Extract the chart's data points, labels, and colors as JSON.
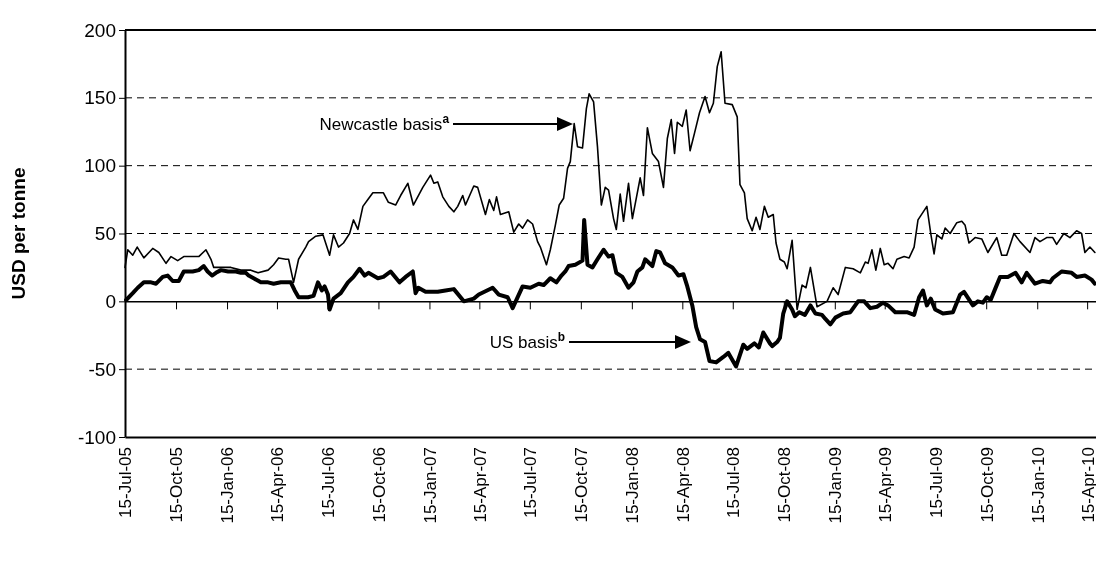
{
  "chart_data": {
    "type": "line",
    "ylabel": "USD per tonne",
    "xlim": [
      "2005-07-15",
      "2010-05-01"
    ],
    "xticks": [
      {
        "value": "2005-07-15",
        "label": "15-Jul-05"
      },
      {
        "value": "2005-10-15",
        "label": "15-Oct-05"
      },
      {
        "value": "2006-01-15",
        "label": "15-Jan-06"
      },
      {
        "value": "2006-04-15",
        "label": "15-Apr-06"
      },
      {
        "value": "2006-07-15",
        "label": "15-Jul-06"
      },
      {
        "value": "2006-10-15",
        "label": "15-Oct-06"
      },
      {
        "value": "2007-01-15",
        "label": "15-Jan-07"
      },
      {
        "value": "2007-04-15",
        "label": "15-Apr-07"
      },
      {
        "value": "2007-07-15",
        "label": "15-Jul-07"
      },
      {
        "value": "2007-10-15",
        "label": "15-Oct-07"
      },
      {
        "value": "2008-01-15",
        "label": "15-Jan-08"
      },
      {
        "value": "2008-04-15",
        "label": "15-Apr-08"
      },
      {
        "value": "2008-07-15",
        "label": "15-Jul-08"
      },
      {
        "value": "2008-10-15",
        "label": "15-Oct-08"
      },
      {
        "value": "2009-01-15",
        "label": "15-Jan-09"
      },
      {
        "value": "2009-04-15",
        "label": "15-Apr-09"
      },
      {
        "value": "2009-07-15",
        "label": "15-Jul-09"
      },
      {
        "value": "2009-10-15",
        "label": "15-Oct-09"
      },
      {
        "value": "2010-01-15",
        "label": "15-Jan-10"
      },
      {
        "value": "2010-04-15",
        "label": "15-Apr-10"
      }
    ],
    "ylim": [
      -100,
      200
    ],
    "yticks": [
      -100,
      -50,
      0,
      50,
      100,
      150,
      200
    ],
    "grid": "y",
    "marker": "none",
    "line_style": "solid",
    "series": [
      {
        "color": "#000000",
        "x": [
          "2005-07-15",
          "2005-07-20",
          "2005-07-29",
          "2005-08-06",
          "2005-08-18",
          "2005-09-03",
          "2005-09-14",
          "2005-09-27",
          "2005-10-06",
          "2005-10-18",
          "2005-10-29",
          "2005-11-11",
          "2005-11-25",
          "2005-12-08",
          "2005-12-17",
          "2005-12-22",
          "2006-01-04",
          "2006-01-22",
          "2006-02-09",
          "2006-02-27",
          "2006-03-12",
          "2006-03-30",
          "2006-04-09",
          "2006-04-18",
          "2006-05-01",
          "2006-05-06",
          "2006-05-15",
          "2006-05-24",
          "2006-06-06",
          "2006-06-11",
          "2006-06-24",
          "2006-07-07",
          "2006-07-19",
          "2006-07-26",
          "2006-08-04",
          "2006-08-13",
          "2006-08-24",
          "2006-08-31",
          "2006-09-08",
          "2006-09-17",
          "2006-09-26",
          "2006-10-05",
          "2006-10-24",
          "2006-11-02",
          "2006-11-15",
          "2006-11-24",
          "2006-12-07",
          "2006-12-17",
          "2007-01-03",
          "2007-01-17",
          "2007-01-23",
          "2007-01-30",
          "2007-02-08",
          "2007-02-19",
          "2007-02-28",
          "2007-03-07",
          "2007-03-16",
          "2007-03-21",
          "2007-04-05",
          "2007-04-12",
          "2007-04-26",
          "2007-05-03",
          "2007-05-11",
          "2007-05-16",
          "2007-05-23",
          "2007-06-07",
          "2007-06-16",
          "2007-06-25",
          "2007-07-02",
          "2007-07-11",
          "2007-07-20",
          "2007-07-29",
          "2007-08-03",
          "2007-08-14",
          "2007-08-21",
          "2007-08-30",
          "2007-09-06",
          "2007-09-14",
          "2007-09-21",
          "2007-09-26",
          "2007-10-03",
          "2007-10-09",
          "2007-10-18",
          "2007-10-25",
          "2007-10-30",
          "2007-11-07",
          "2007-11-14",
          "2007-11-21",
          "2007-11-28",
          "2007-12-04",
          "2007-12-13",
          "2007-12-18",
          "2007-12-25",
          "2007-12-31",
          "2008-01-09",
          "2008-01-16",
          "2008-01-30",
          "2008-02-05",
          "2008-02-12",
          "2008-02-21",
          "2008-03-03",
          "2008-03-12",
          "2008-03-19",
          "2008-03-26",
          "2008-04-01",
          "2008-04-06",
          "2008-04-15",
          "2008-04-22",
          "2008-04-29",
          "2008-05-07",
          "2008-05-16",
          "2008-05-26",
          "2008-06-03",
          "2008-06-10",
          "2008-06-17",
          "2008-06-24",
          "2008-07-01",
          "2008-07-14",
          "2008-07-23",
          "2008-07-28",
          "2008-08-05",
          "2008-08-10",
          "2008-08-19",
          "2008-08-26",
          "2008-09-02",
          "2008-09-10",
          "2008-09-17",
          "2008-09-26",
          "2008-10-01",
          "2008-10-08",
          "2008-10-16",
          "2008-10-21",
          "2008-10-30",
          "2008-11-08",
          "2008-11-17",
          "2008-11-24",
          "2008-12-02",
          "2008-12-14",
          "2009-01-01",
          "2009-01-12",
          "2009-01-21",
          "2009-02-03",
          "2009-02-17",
          "2009-03-02",
          "2009-03-11",
          "2009-03-16",
          "2009-03-23",
          "2009-03-30",
          "2009-04-07",
          "2009-04-14",
          "2009-04-21",
          "2009-04-30",
          "2009-05-07",
          "2009-05-20",
          "2009-05-29",
          "2009-06-07",
          "2009-06-14",
          "2009-06-30",
          "2009-07-07",
          "2009-07-13",
          "2009-07-18",
          "2009-07-27",
          "2009-08-02",
          "2009-08-11",
          "2009-08-23",
          "2009-09-01",
          "2009-09-07",
          "2009-09-14",
          "2009-09-25",
          "2009-10-07",
          "2009-10-18",
          "2009-11-03",
          "2009-11-12",
          "2009-11-21",
          "2009-12-04",
          "2009-12-15",
          "2010-01-02",
          "2010-01-11",
          "2010-01-20",
          "2010-02-01",
          "2010-02-12",
          "2010-02-19",
          "2010-03-04",
          "2010-03-15",
          "2010-03-27",
          "2010-04-05",
          "2010-04-11",
          "2010-04-20",
          "2010-04-29"
        ],
        "values": [
          25,
          38,
          34,
          40,
          32,
          39,
          36,
          28,
          33,
          30,
          33,
          33,
          33,
          38,
          31,
          25,
          25,
          25,
          23,
          23,
          21,
          23,
          27,
          32,
          31,
          31,
          14,
          31,
          40,
          44,
          48,
          49,
          34,
          49,
          40,
          43,
          50,
          60,
          53,
          70,
          75,
          80,
          80,
          73,
          71,
          78,
          87,
          71,
          84,
          93,
          87,
          88,
          77,
          70,
          66,
          70,
          78,
          71,
          85,
          84,
          64,
          75,
          67,
          77,
          64,
          66,
          51,
          57,
          54,
          60,
          57,
          44,
          40,
          27,
          38,
          56,
          71,
          76,
          98,
          103,
          131,
          114,
          113,
          142,
          153,
          147,
          114,
          71,
          84,
          82,
          61,
          53,
          79,
          59,
          87,
          61,
          91,
          78,
          128,
          109,
          103,
          84,
          120,
          134,
          109,
          132,
          129,
          141,
          111,
          124,
          139,
          151,
          139,
          146,
          173,
          184,
          146,
          145,
          136,
          86,
          80,
          61,
          52,
          62,
          53,
          70,
          62,
          64,
          43,
          31,
          29,
          24,
          45,
          -6,
          12,
          10,
          25,
          -4,
          0,
          10,
          5,
          25,
          24,
          21,
          29,
          28,
          38,
          23,
          39,
          27,
          28,
          24,
          31,
          33,
          32,
          40,
          60,
          70,
          50,
          35,
          49,
          46,
          54,
          50,
          58,
          59,
          56,
          43,
          47,
          46,
          36,
          47,
          34,
          34,
          50,
          44,
          36,
          47,
          44,
          47,
          47,
          42,
          50,
          47,
          52,
          50,
          36,
          40,
          36
        ]
      },
      {
        "color": "#000000",
        "x": [
          "2005-07-17",
          "2005-07-29",
          "2005-08-07",
          "2005-08-18",
          "2005-08-31",
          "2005-09-09",
          "2005-09-21",
          "2005-09-30",
          "2005-10-09",
          "2005-10-20",
          "2005-10-29",
          "2005-11-14",
          "2005-11-25",
          "2005-12-04",
          "2005-12-11",
          "2005-12-19",
          "2005-12-26",
          "2006-01-04",
          "2006-01-17",
          "2006-01-31",
          "2006-02-09",
          "2006-02-18",
          "2006-02-23",
          "2006-03-04",
          "2006-03-17",
          "2006-03-30",
          "2006-04-09",
          "2006-04-22",
          "2006-05-10",
          "2006-05-17",
          "2006-05-24",
          "2006-06-10",
          "2006-06-20",
          "2006-06-28",
          "2006-07-05",
          "2006-07-10",
          "2006-07-16",
          "2006-07-19",
          "2006-07-26",
          "2006-08-08",
          "2006-08-21",
          "2006-08-31",
          "2006-09-11",
          "2006-09-20",
          "2006-09-27",
          "2006-10-14",
          "2006-10-24",
          "2006-11-06",
          "2006-11-22",
          "2006-12-03",
          "2006-12-16",
          "2006-12-21",
          "2006-12-26",
          "2007-01-08",
          "2007-01-30",
          "2007-02-13",
          "2007-02-28",
          "2007-03-18",
          "2007-04-05",
          "2007-04-14",
          "2007-05-09",
          "2007-05-20",
          "2007-06-05",
          "2007-06-14",
          "2007-07-02",
          "2007-07-16",
          "2007-07-31",
          "2007-08-09",
          "2007-08-21",
          "2007-09-01",
          "2007-09-10",
          "2007-09-17",
          "2007-09-23",
          "2007-10-05",
          "2007-10-18",
          "2007-10-21",
          "2007-10-27",
          "2007-11-05",
          "2007-11-14",
          "2007-11-25",
          "2007-12-04",
          "2007-12-11",
          "2007-12-18",
          "2007-12-29",
          "2008-01-09",
          "2008-01-18",
          "2008-01-25",
          "2008-02-03",
          "2008-02-08",
          "2008-02-21",
          "2008-02-28",
          "2008-03-06",
          "2008-03-15",
          "2008-03-28",
          "2008-04-08",
          "2008-04-17",
          "2008-04-24",
          "2008-05-03",
          "2008-05-10",
          "2008-05-17",
          "2008-05-26",
          "2008-06-03",
          "2008-06-15",
          "2008-06-28",
          "2008-07-07",
          "2008-07-21",
          "2008-08-03",
          "2008-08-10",
          "2008-08-23",
          "2008-08-31",
          "2008-09-08",
          "2008-09-20",
          "2008-09-24",
          "2008-10-03",
          "2008-10-08",
          "2008-10-14",
          "2008-10-21",
          "2008-10-30",
          "2008-11-04",
          "2008-11-12",
          "2008-11-22",
          "2008-12-02",
          "2008-12-11",
          "2008-12-23",
          "2008-12-29",
          "2009-01-07",
          "2009-01-16",
          "2009-01-30",
          "2009-02-12",
          "2009-02-26",
          "2009-03-09",
          "2009-03-20",
          "2009-04-01",
          "2009-04-12",
          "2009-04-21",
          "2009-05-04",
          "2009-05-25",
          "2009-06-07",
          "2009-06-16",
          "2009-06-23",
          "2009-06-30",
          "2009-07-07",
          "2009-07-15",
          "2009-07-29",
          "2009-08-16",
          "2009-08-29",
          "2009-09-05",
          "2009-09-21",
          "2009-09-30",
          "2009-10-09",
          "2009-10-16",
          "2009-10-23",
          "2009-10-31",
          "2009-11-09",
          "2009-11-23",
          "2009-12-07",
          "2009-12-18",
          "2009-12-27",
          "2010-01-11",
          "2010-01-25",
          "2010-02-07",
          "2010-02-12",
          "2010-02-28",
          "2010-03-18",
          "2010-03-27",
          "2010-04-11",
          "2010-04-23",
          "2010-04-29"
        ],
        "values": [
          1,
          6,
          10,
          14,
          14,
          13,
          18,
          19,
          15,
          15,
          22,
          22,
          23,
          26,
          22,
          19,
          21,
          23,
          22,
          22,
          21,
          21,
          19,
          17,
          14,
          14,
          13,
          14,
          14,
          8,
          3,
          3,
          4,
          14,
          8,
          11,
          5,
          -6,
          2,
          6,
          14,
          18,
          24,
          19,
          21,
          17,
          18,
          22,
          14,
          18,
          22,
          6,
          10,
          7,
          7,
          8,
          9,
          0,
          2,
          5,
          10,
          5,
          3,
          -5,
          11,
          10,
          13,
          12,
          17,
          14,
          19,
          22,
          26,
          27,
          30,
          60,
          27,
          25,
          31,
          38,
          33,
          34,
          21,
          18,
          10,
          14,
          22,
          25,
          31,
          26,
          37,
          36,
          28,
          25,
          19,
          20,
          11,
          -3,
          -19,
          -28,
          -30,
          -44,
          -45,
          -41,
          -38,
          -48,
          -32,
          -35,
          -31,
          -34,
          -23,
          -31,
          -33,
          -30,
          -27,
          -9,
          0,
          -6,
          -11,
          -8,
          -10,
          -3,
          -9,
          -10,
          -13,
          -17,
          -12,
          -9,
          -8,
          0,
          0,
          -5,
          -4,
          -1,
          -3,
          -8,
          -8,
          -10,
          3,
          8,
          -3,
          2,
          -6,
          -9,
          -8,
          5,
          7,
          -3,
          0,
          -1,
          3,
          1,
          9,
          18,
          18,
          21,
          14,
          21,
          13,
          15,
          14,
          17,
          22,
          21,
          18,
          19,
          16,
          13
        ]
      }
    ],
    "annotations": [
      "Newcastle basis$^{a}$",
      "US basis$^{b}$"
    ]
  }
}
